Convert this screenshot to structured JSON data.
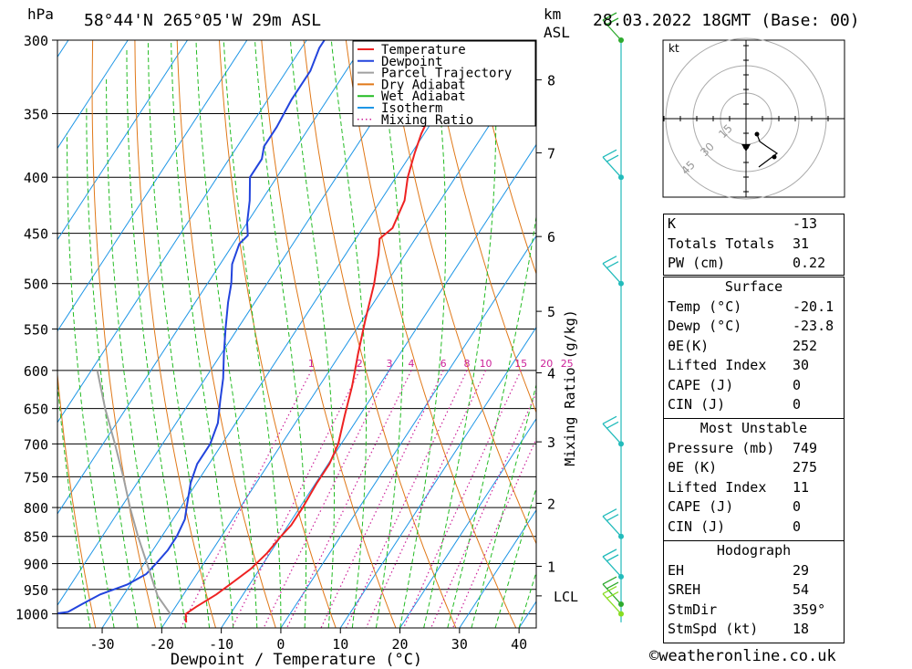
{
  "header": {
    "pressure_unit": "hPa",
    "location": "58°44'N  265°05'W  29m  ASL",
    "height_unit_line1": "km",
    "height_unit_line2": "ASL",
    "datetime": "28.03.2022  18GMT  (Base: 00)"
  },
  "chart_data": {
    "type": "line",
    "subtype": "skew-T log-P diagram",
    "xlabel": "Dewpoint / Temperature (°C)",
    "ylabel_left": "hPa",
    "ylabel_right": "Mixing Ratio (g/kg)",
    "x_ticks": [
      -30,
      -20,
      -10,
      0,
      10,
      20,
      30,
      40
    ],
    "pressure_levels": [
      300,
      350,
      400,
      450,
      500,
      550,
      600,
      650,
      700,
      750,
      800,
      850,
      900,
      950,
      1000
    ],
    "km_ticks": [
      {
        "label": "1",
        "p": 905
      },
      {
        "label": "2",
        "p": 793
      },
      {
        "label": "3",
        "p": 697
      },
      {
        "label": "4",
        "p": 603
      },
      {
        "label": "5",
        "p": 530
      },
      {
        "label": "6",
        "p": 453
      },
      {
        "label": "7",
        "p": 380
      },
      {
        "label": "8",
        "p": 326
      }
    ],
    "lcl": {
      "label": "LCL",
      "p": 963
    },
    "mixing_ratio_labels": [
      "1",
      "2",
      "3",
      "4",
      "6",
      "8",
      "10",
      "15",
      "20",
      "25"
    ],
    "legend": {
      "placement": "top-right of plot",
      "entries": [
        {
          "name": "Temperature",
          "color": "#ee2222"
        },
        {
          "name": "Dewpoint",
          "color": "#2244dd"
        },
        {
          "name": "Parcel Trajectory",
          "color": "#a0a0a0"
        },
        {
          "name": "Dry Adiabat",
          "color": "#e07818"
        },
        {
          "name": "Wet Adiabat",
          "color": "#22bb22"
        },
        {
          "name": "Isotherm",
          "color": "#1e96e6"
        },
        {
          "name": "Mixing Ratio",
          "color": "#cc2299",
          "dotted": true
        }
      ]
    },
    "series": [
      {
        "name": "Temperature",
        "points": [
          [
            1018,
            -16.5
          ],
          [
            1000,
            -17.5
          ],
          [
            985,
            -16.5
          ],
          [
            960,
            -14.5
          ],
          [
            935,
            -13
          ],
          [
            910,
            -11.5
          ],
          [
            880,
            -10.5
          ],
          [
            850,
            -10
          ],
          [
            830,
            -9.5
          ],
          [
            800,
            -9.5
          ],
          [
            760,
            -9.8
          ],
          [
            730,
            -9.8
          ],
          [
            700,
            -10.5
          ],
          [
            660,
            -12.5
          ],
          [
            620,
            -14.5
          ],
          [
            580,
            -17
          ],
          [
            540,
            -19.5
          ],
          [
            500,
            -22
          ],
          [
            470,
            -24.5
          ],
          [
            455,
            -26
          ],
          [
            445,
            -25
          ],
          [
            420,
            -26
          ],
          [
            400,
            -28
          ],
          [
            380,
            -29.5
          ],
          [
            365,
            -30.5
          ],
          [
            340,
            -31.5
          ],
          [
            325,
            -33.5
          ],
          [
            315,
            -33
          ],
          [
            303,
            -34
          ],
          [
            300,
            -34
          ]
        ]
      },
      {
        "name": "Dewpoint",
        "points": [
          [
            1020,
            -51
          ],
          [
            1012,
            -47.5
          ],
          [
            1004,
            -42
          ],
          [
            996,
            -37.5
          ],
          [
            980,
            -36
          ],
          [
            960,
            -34
          ],
          [
            940,
            -30.5
          ],
          [
            920,
            -28.5
          ],
          [
            900,
            -28
          ],
          [
            875,
            -27.5
          ],
          [
            850,
            -27.5
          ],
          [
            820,
            -28
          ],
          [
            800,
            -29
          ],
          [
            760,
            -31
          ],
          [
            730,
            -32
          ],
          [
            700,
            -32
          ],
          [
            670,
            -33
          ],
          [
            640,
            -35
          ],
          [
            610,
            -37
          ],
          [
            580,
            -39.5
          ],
          [
            550,
            -42
          ],
          [
            520,
            -44.5
          ],
          [
            500,
            -46
          ],
          [
            480,
            -48
          ],
          [
            460,
            -49
          ],
          [
            452,
            -48.5
          ],
          [
            440,
            -50
          ],
          [
            420,
            -52
          ],
          [
            400,
            -54.5
          ],
          [
            385,
            -54.5
          ],
          [
            375,
            -55.5
          ],
          [
            360,
            -55.5
          ],
          [
            340,
            -56
          ],
          [
            320,
            -56
          ],
          [
            305,
            -57
          ],
          [
            300,
            -57
          ]
        ]
      },
      {
        "name": "Parcel Trajectory",
        "points": [
          [
            1000,
            -20.1
          ],
          [
            963,
            -24.2
          ],
          [
            900,
            -29.5
          ],
          [
            850,
            -34
          ],
          [
            800,
            -38.5
          ],
          [
            750,
            -43
          ],
          [
            700,
            -48
          ],
          [
            650,
            -53.5
          ],
          [
            600,
            -59
          ]
        ]
      }
    ],
    "wind_barbs": [
      {
        "p": 300,
        "color": "#2eaa2e"
      },
      {
        "p": 400,
        "color": "#22bbbb"
      },
      {
        "p": 500,
        "color": "#22bbbb"
      },
      {
        "p": 700,
        "color": "#22bbbb"
      },
      {
        "p": 850,
        "color": "#22bbbb"
      },
      {
        "p": 925,
        "color": "#22bbbb"
      },
      {
        "p": 980,
        "color": "#2eaa2e"
      },
      {
        "p": 1000,
        "color": "#88dd22"
      }
    ]
  },
  "hodograph": {
    "unit": "kt",
    "ring_labels": [
      "15",
      "30",
      "45"
    ]
  },
  "indices": [
    {
      "label": "K",
      "value": "-13"
    },
    {
      "label": "Totals Totals",
      "value": "31"
    },
    {
      "label": "PW (cm)",
      "value": "0.22"
    }
  ],
  "surface": {
    "title": "Surface",
    "rows": [
      {
        "label": "Temp (°C)",
        "value": "-20.1"
      },
      {
        "label": "Dewp (°C)",
        "value": "-23.8"
      },
      {
        "label": "θE(K)",
        "value": "252"
      },
      {
        "label": "Lifted Index",
        "value": "30"
      },
      {
        "label": "CAPE (J)",
        "value": "0"
      },
      {
        "label": "CIN (J)",
        "value": "0"
      }
    ]
  },
  "most_unstable": {
    "title": "Most Unstable",
    "rows": [
      {
        "label": "Pressure (mb)",
        "value": "749"
      },
      {
        "label": "θE (K)",
        "value": "275"
      },
      {
        "label": "Lifted Index",
        "value": "11"
      },
      {
        "label": "CAPE (J)",
        "value": "0"
      },
      {
        "label": "CIN (J)",
        "value": "0"
      }
    ]
  },
  "hodograph_table": {
    "title": "Hodograph",
    "rows": [
      {
        "label": "EH",
        "value": "29"
      },
      {
        "label": "SREH",
        "value": "54"
      },
      {
        "label": "StmDir",
        "value": "359°"
      },
      {
        "label": "StmSpd (kt)",
        "value": "18"
      }
    ]
  },
  "copyright": "©weatheronline.co.uk"
}
